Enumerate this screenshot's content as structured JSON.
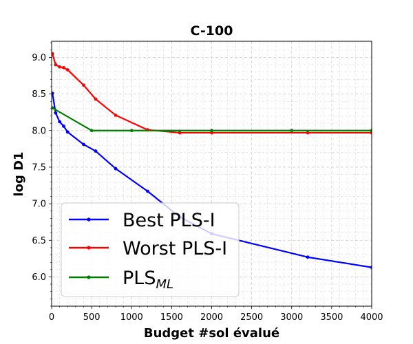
{
  "chart_data": {
    "type": "line",
    "title": "C-100",
    "xlabel": "Budget #sol évalué",
    "ylabel": "log D1",
    "xlim": [
      0,
      4000
    ],
    "ylim": [
      5.6,
      9.22
    ],
    "xticks": [
      0,
      500,
      1000,
      1500,
      2000,
      2500,
      3000,
      3500,
      4000
    ],
    "yticks": [
      6.0,
      6.5,
      7.0,
      7.5,
      8.0,
      8.5,
      9.0
    ],
    "grid": true,
    "legend_position": "lower-left",
    "series": [
      {
        "name": "Best PLS-I",
        "color": "#0000ff",
        "x": [
          10,
          50,
          100,
          150,
          200,
          400,
          550,
          800,
          1200,
          1600,
          2000,
          3200,
          4000
        ],
        "y": [
          8.51,
          8.24,
          8.12,
          8.06,
          7.98,
          7.81,
          7.72,
          7.48,
          7.17,
          6.82,
          6.59,
          6.27,
          6.13
        ]
      },
      {
        "name": "Worst PLS-I",
        "color": "#ff0000",
        "x": [
          10,
          50,
          100,
          150,
          200,
          400,
          550,
          800,
          1200,
          1600,
          2000,
          3200,
          4000
        ],
        "y": [
          9.05,
          8.9,
          8.87,
          8.86,
          8.83,
          8.62,
          8.43,
          8.21,
          8.01,
          7.97,
          7.97,
          7.97,
          7.97
        ]
      },
      {
        "name": "PLS",
        "name_subscript": "ML",
        "color": "#008000",
        "x": [
          10,
          500,
          1000,
          2000,
          3000,
          4000
        ],
        "y": [
          8.31,
          8.0,
          8.0,
          8.0,
          8.0,
          8.0
        ]
      }
    ]
  }
}
